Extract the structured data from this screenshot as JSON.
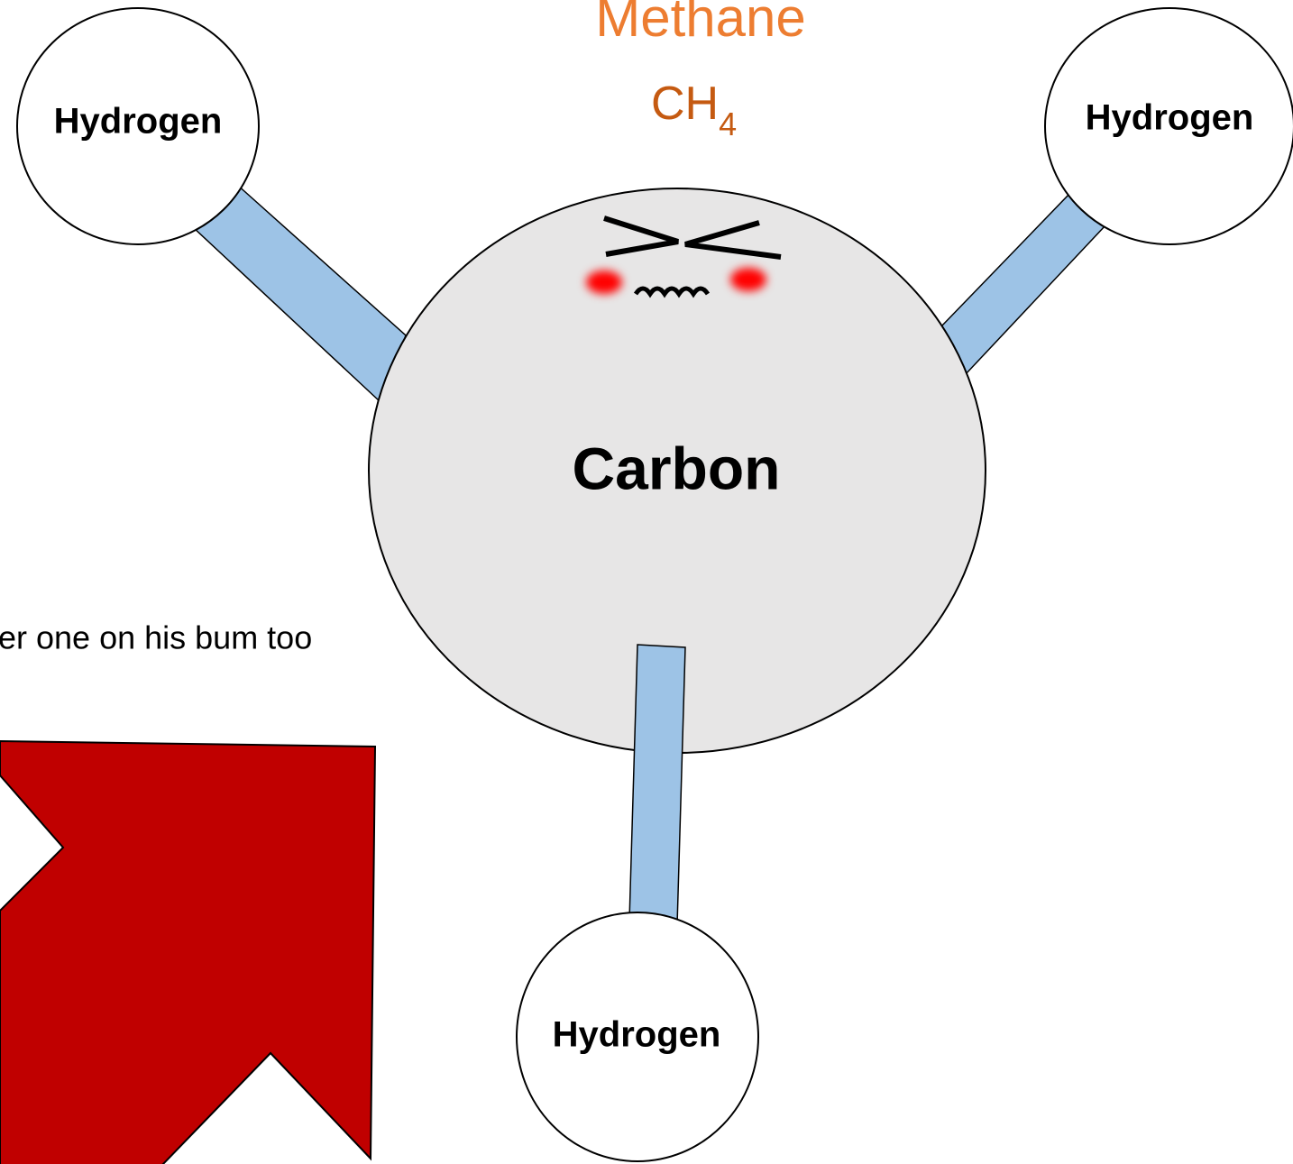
{
  "title": "Methane",
  "formula": {
    "base": "CH",
    "subscript": "4"
  },
  "nodes": [
    {
      "label": "Hydrogen"
    },
    {
      "label": "Hydrogen"
    },
    {
      "label": "Hydrogen"
    },
    {
      "label": "Carbon"
    }
  ],
  "caption": "er one on his bum too"
}
